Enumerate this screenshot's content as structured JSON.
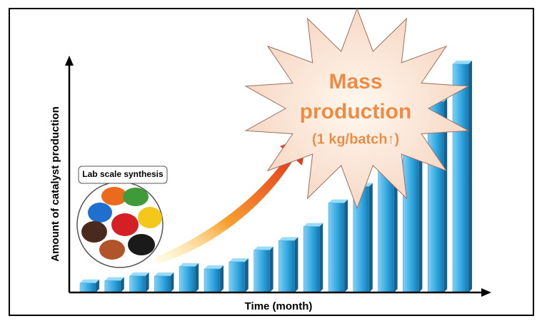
{
  "chart_data": {
    "type": "bar",
    "categories": [
      null,
      null,
      null,
      null,
      null,
      null,
      null,
      null,
      null,
      null,
      null,
      null,
      null,
      null,
      null,
      null
    ],
    "values": [
      4,
      5,
      7,
      7,
      11,
      10,
      13,
      18,
      22,
      28,
      38,
      45,
      55,
      65,
      81,
      97
    ],
    "ylim": [
      0,
      100
    ],
    "color": "#2f9fd8",
    "x_label": "Time (month)",
    "y_label": "Amount of catalyst production",
    "annotations": {
      "starburst": [
        "Mass",
        "production",
        "(1 kg/batch↑)"
      ],
      "inset_label": "Lab scale synthesis"
    }
  }
}
